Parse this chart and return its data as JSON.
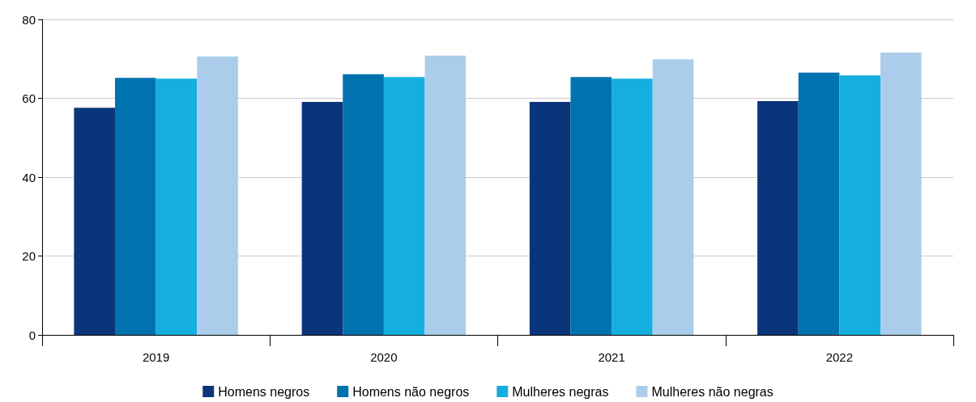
{
  "chart_data": {
    "type": "bar",
    "categories": [
      "2019",
      "2020",
      "2021",
      "2022"
    ],
    "series": [
      {
        "name": "Homens negros",
        "color": "#0a357a",
        "values": [
          57.6,
          59.1,
          59.1,
          59.3
        ]
      },
      {
        "name": "Homens não negros",
        "color": "#0072b0",
        "values": [
          65.2,
          66.1,
          65.4,
          66.5
        ]
      },
      {
        "name": "Mulheres negras",
        "color": "#14afdf",
        "values": [
          65.0,
          65.4,
          65.0,
          65.8
        ]
      },
      {
        "name": "Mulheres não negras",
        "color": "#abcdeb",
        "values": [
          70.6,
          70.8,
          69.9,
          71.6
        ]
      }
    ],
    "ylim": [
      0,
      80
    ],
    "yticks": [
      0,
      20,
      40,
      60,
      80
    ],
    "grid": "y",
    "legend": "bottom"
  }
}
